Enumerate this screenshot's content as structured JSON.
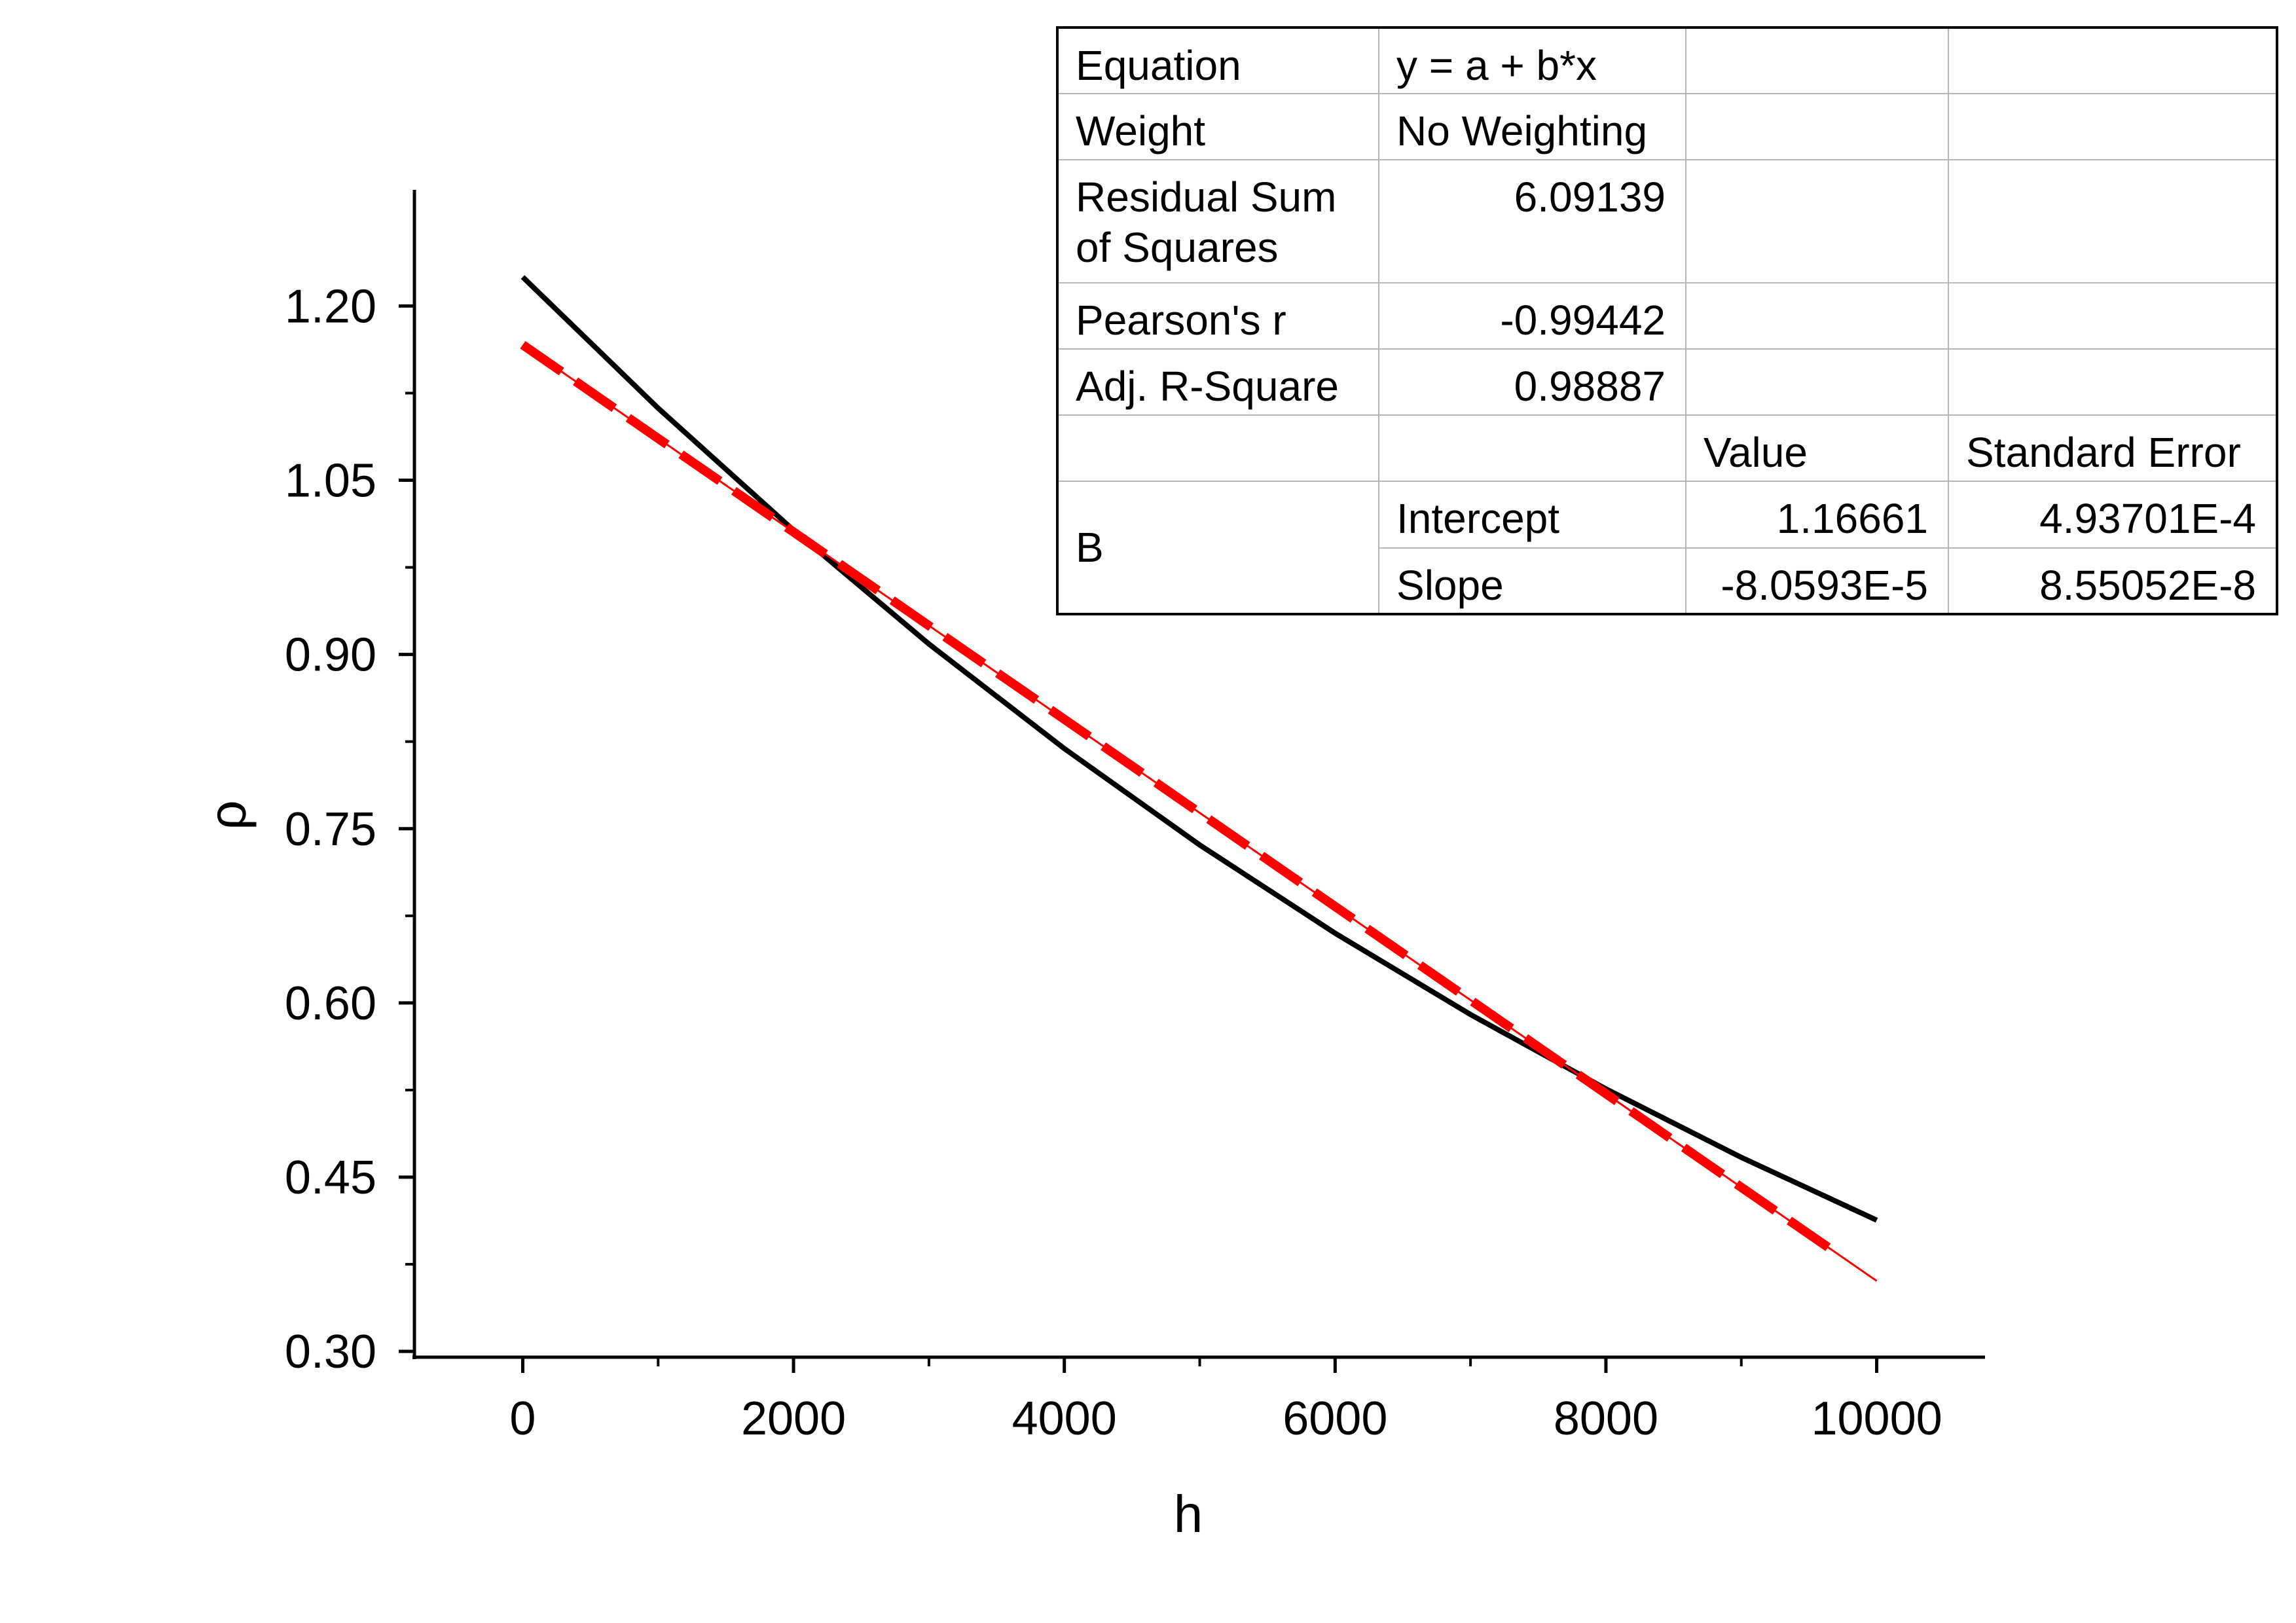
{
  "chart_data": {
    "type": "line",
    "xlabel": "h",
    "ylabel": "ρ",
    "xlim": [
      -800,
      10800
    ],
    "ylim": [
      0.295,
      1.3
    ],
    "x_ticks": [
      "0",
      "2000",
      "4000",
      "6000",
      "8000",
      "10000"
    ],
    "x_tick_values": [
      0,
      2000,
      4000,
      6000,
      8000,
      10000
    ],
    "x_minor_tick_values": [
      1000,
      3000,
      5000,
      7000,
      9000
    ],
    "y_ticks": [
      "0.30",
      "0.45",
      "0.60",
      "0.75",
      "0.90",
      "1.05",
      "1.20"
    ],
    "y_tick_values": [
      0.3,
      0.45,
      0.6,
      0.75,
      0.9,
      1.05,
      1.2
    ],
    "y_minor_tick_values": [
      0.375,
      0.525,
      0.675,
      0.825,
      0.975,
      1.125
    ],
    "grid": false,
    "series": [
      {
        "style": "solid",
        "color": "#000000",
        "x": [
          0,
          1000,
          2000,
          3000,
          4000,
          5000,
          6000,
          7000,
          8000,
          9000,
          10000
        ],
        "y": [
          1.225,
          1.112,
          1.007,
          0.909,
          0.819,
          0.736,
          0.66,
          0.59,
          0.526,
          0.467,
          0.413
        ]
      },
      {
        "style": "dashed",
        "color": "#ff0000",
        "x": [
          0,
          9700
        ],
        "y": [
          1.16661,
          0.38486
        ]
      },
      {
        "style": "thin",
        "color": "#ff0000",
        "x": [
          0,
          10000
        ],
        "y": [
          1.16661,
          0.36068
        ]
      }
    ]
  },
  "fit_table": {
    "equation_label": "Equation",
    "equation_value": "y = a + b*x",
    "weight_label": "Weight",
    "weight_value": "No Weighting",
    "rss_label": "Residual Sum of Squares",
    "rss_value": "6.09139",
    "pearson_label": "Pearson's r",
    "pearson_value": "-0.99442",
    "adj_r2_label": "Adj. R-Square",
    "adj_r2_value": "0.98887",
    "value_header": "Value",
    "stderr_header": "Standard Error",
    "param_group": "B",
    "intercept_label": "Intercept",
    "intercept_value": "1.16661",
    "intercept_stderr": "4.93701E-4",
    "slope_label": "Slope",
    "slope_value": "-8.0593E-5",
    "slope_stderr": "8.55052E-8"
  }
}
